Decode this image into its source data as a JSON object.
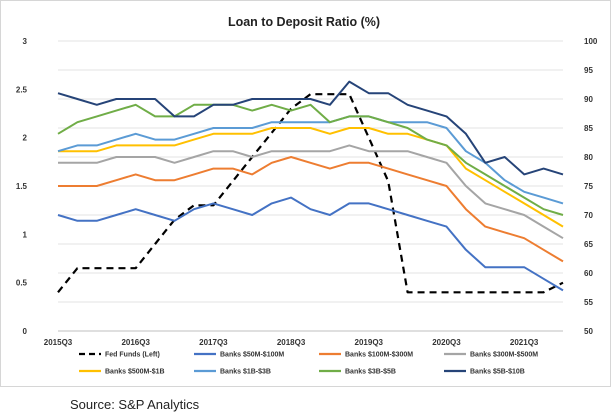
{
  "source": "Source: S&P Analytics",
  "chart_data": {
    "type": "line",
    "title": "Loan to Deposit Ratio (%)",
    "xlabel": "",
    "ylabel": "",
    "x": [
      "2015Q3",
      "2015Q4",
      "2016Q1",
      "2016Q2",
      "2016Q3",
      "2016Q4",
      "2017Q1",
      "2017Q2",
      "2017Q3",
      "2017Q4",
      "2018Q1",
      "2018Q2",
      "2018Q3",
      "2018Q4",
      "2019Q1",
      "2019Q2",
      "2019Q3",
      "2019Q4",
      "2020Q1",
      "2020Q2",
      "2020Q3",
      "2020Q4",
      "2021Q1",
      "2021Q2",
      "2021Q3",
      "2021Q4",
      "2022Q1"
    ],
    "x_tick_labels": [
      "2015Q3",
      "2016Q3",
      "2017Q3",
      "2018Q3",
      "2019Q3",
      "2020Q3",
      "2021Q3"
    ],
    "x_tick_index": [
      0,
      4,
      8,
      12,
      16,
      20,
      24
    ],
    "y_left": {
      "range": [
        0,
        3
      ],
      "ticks": [
        "0",
        "0.5",
        "1",
        "1.5",
        "2",
        "2.5",
        "3"
      ]
    },
    "y_right": {
      "range": [
        50,
        100
      ],
      "ticks": [
        "50",
        "55",
        "60",
        "65",
        "70",
        "75",
        "80",
        "85",
        "90",
        "95",
        "100"
      ]
    },
    "grid": true,
    "legend_position": "bottom",
    "series": [
      {
        "name": "Fed Funds (Left)",
        "axis": "left",
        "color": "#000000",
        "dashed": true,
        "values": [
          0.4,
          0.65,
          0.65,
          0.65,
          0.65,
          0.9,
          1.15,
          1.3,
          1.3,
          1.55,
          1.8,
          2.05,
          2.3,
          2.45,
          2.45,
          2.45,
          2.0,
          1.55,
          0.4,
          0.4,
          0.4,
          0.4,
          0.4,
          0.4,
          0.4,
          0.4,
          0.5
        ]
      },
      {
        "name": "Banks $50M-$100M",
        "axis": "right",
        "color": "#4472c4",
        "values": [
          70,
          69,
          69,
          70,
          71,
          70,
          69,
          71,
          72,
          71,
          70,
          72,
          73,
          71,
          70,
          72,
          72,
          71,
          70,
          69,
          68,
          64,
          61,
          61,
          61,
          59,
          57
        ]
      },
      {
        "name": "Banks $100M-$300M",
        "axis": "right",
        "color": "#ed7d31",
        "values": [
          75,
          75,
          75,
          76,
          77,
          76,
          76,
          77,
          78,
          78,
          77,
          79,
          80,
          79,
          78,
          79,
          79,
          78,
          77,
          76,
          75,
          71,
          68,
          67,
          66,
          64,
          62
        ]
      },
      {
        "name": "Banks $300M-$500M",
        "axis": "right",
        "color": "#a5a5a5",
        "values": [
          79,
          79,
          79,
          80,
          80,
          80,
          79,
          80,
          81,
          81,
          80,
          81,
          81,
          81,
          81,
          82,
          81,
          81,
          81,
          80,
          79,
          75,
          72,
          71,
          70,
          68,
          66
        ]
      },
      {
        "name": "Banks $500M-$1B",
        "axis": "right",
        "color": "#ffc000",
        "values": [
          81,
          81,
          81,
          82,
          82,
          82,
          82,
          83,
          84,
          84,
          84,
          85,
          85,
          85,
          84,
          85,
          85,
          84,
          84,
          83,
          82,
          78,
          76,
          74,
          72,
          70,
          68
        ]
      },
      {
        "name": "Banks $1B-$3B",
        "axis": "right",
        "color": "#5b9bd5",
        "values": [
          81,
          82,
          82,
          83,
          84,
          83,
          83,
          84,
          85,
          85,
          85,
          86,
          86,
          86,
          86,
          87,
          87,
          86,
          86,
          86,
          85,
          81,
          79,
          76,
          74,
          73,
          72
        ]
      },
      {
        "name": "Banks $3B-$5B",
        "axis": "right",
        "color": "#70ad47",
        "values": [
          84,
          86,
          87,
          88,
          89,
          87,
          87,
          89,
          89,
          89,
          88,
          89,
          88,
          89,
          86,
          87,
          87,
          86,
          85,
          83,
          82,
          79,
          77,
          75,
          73,
          71,
          70
        ]
      },
      {
        "name": "Banks $5B-$10B",
        "axis": "right",
        "color": "#264478",
        "values": [
          91,
          90,
          89,
          90,
          90,
          90,
          87,
          87,
          89,
          89,
          90,
          90,
          90,
          90,
          89,
          93,
          91,
          91,
          89,
          88,
          87,
          84,
          79,
          80,
          77,
          78,
          77
        ]
      }
    ]
  }
}
